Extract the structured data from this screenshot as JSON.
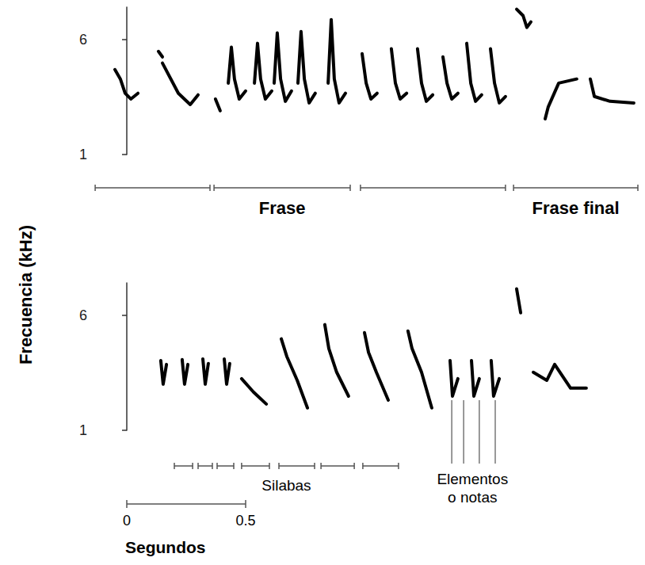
{
  "y_label": "Frecuencia (kHz)",
  "color": "#000000",
  "chart_data": [
    {
      "type": "spectrogram",
      "xlim": [
        -0.14,
        2.16
      ],
      "ylim": [
        1,
        7.4
      ],
      "yticks": [
        1,
        6
      ],
      "notes": [
        [
          [
            -0.05,
            4.69
          ],
          [
            -0.027,
            4.28
          ],
          [
            -0.007,
            3.66
          ],
          [
            0.017,
            3.41
          ],
          [
            0.047,
            3.66
          ]
        ],
        [
          [
            0.133,
            5.48
          ],
          [
            0.15,
            5.24
          ]
        ],
        [
          [
            0.15,
            4.97
          ],
          [
            0.217,
            3.66
          ],
          [
            0.267,
            3.17
          ],
          [
            0.3,
            3.59
          ]
        ],
        [
          [
            0.373,
            3.41
          ],
          [
            0.393,
            2.9
          ]
        ],
        [
          [
            0.427,
            4.1
          ],
          [
            0.44,
            5.66
          ],
          [
            0.453,
            4.28
          ],
          [
            0.473,
            3.41
          ],
          [
            0.5,
            3.76
          ]
        ],
        [
          [
            0.537,
            4.1
          ],
          [
            0.55,
            5.83
          ],
          [
            0.563,
            4.28
          ],
          [
            0.583,
            3.41
          ],
          [
            0.61,
            3.76
          ]
        ],
        [
          [
            0.62,
            4.1
          ],
          [
            0.633,
            6.28
          ],
          [
            0.647,
            4.28
          ],
          [
            0.667,
            3.31
          ],
          [
            0.693,
            3.76
          ]
        ],
        [
          [
            0.72,
            4.1
          ],
          [
            0.733,
            6.34
          ],
          [
            0.747,
            4.28
          ],
          [
            0.767,
            3.24
          ],
          [
            0.793,
            3.66
          ]
        ],
        [
          [
            0.847,
            4.1
          ],
          [
            0.86,
            6.86
          ],
          [
            0.873,
            4.28
          ],
          [
            0.893,
            3.24
          ],
          [
            0.92,
            3.66
          ]
        ],
        [
          [
            0.99,
            5.38
          ],
          [
            1.007,
            4.1
          ],
          [
            1.027,
            3.41
          ],
          [
            1.053,
            3.66
          ]
        ],
        [
          [
            1.113,
            5.59
          ],
          [
            1.13,
            4.1
          ],
          [
            1.15,
            3.41
          ],
          [
            1.177,
            3.66
          ]
        ],
        [
          [
            1.223,
            5.59
          ],
          [
            1.24,
            4.1
          ],
          [
            1.26,
            3.31
          ],
          [
            1.287,
            3.59
          ]
        ],
        [
          [
            1.33,
            5.24
          ],
          [
            1.347,
            4.1
          ],
          [
            1.367,
            3.41
          ],
          [
            1.393,
            3.66
          ]
        ],
        [
          [
            1.43,
            5.83
          ],
          [
            1.447,
            4.1
          ],
          [
            1.467,
            3.31
          ],
          [
            1.493,
            3.59
          ]
        ],
        [
          [
            1.53,
            5.59
          ],
          [
            1.547,
            4.1
          ],
          [
            1.567,
            3.24
          ],
          [
            1.593,
            3.52
          ]
        ],
        [
          [
            1.64,
            7.31
          ],
          [
            1.667,
            7.03
          ],
          [
            1.683,
            6.52
          ],
          [
            1.7,
            6.76
          ]
        ],
        [
          [
            1.76,
            2.55
          ],
          [
            1.773,
            3.07
          ],
          [
            1.817,
            4.1
          ],
          [
            1.893,
            4.28
          ]
        ],
        [
          [
            1.95,
            4.28
          ],
          [
            1.967,
            3.52
          ],
          [
            2.033,
            3.31
          ],
          [
            2.133,
            3.24
          ]
        ]
      ],
      "brackets": [
        {
          "span": [
            -0.133,
            0.35
          ]
        },
        {
          "span": [
            0.367,
            0.94
          ],
          "label": "Frase"
        },
        {
          "span": [
            0.983,
            1.593
          ]
        },
        {
          "span": [
            1.627,
            2.15
          ],
          "label": "Frase final"
        }
      ]
    },
    {
      "type": "spectrogram",
      "xlim": [
        -0.14,
        2.16
      ],
      "ylim": [
        1,
        7.4
      ],
      "yticks": [
        1,
        6
      ],
      "notes": [
        [
          [
            0.143,
            4.03
          ],
          [
            0.153,
            3.0
          ],
          [
            0.167,
            3.86
          ]
        ],
        [
          [
            0.233,
            4.07
          ],
          [
            0.243,
            3.0
          ],
          [
            0.257,
            3.86
          ]
        ],
        [
          [
            0.32,
            4.1
          ],
          [
            0.33,
            3.0
          ],
          [
            0.343,
            3.9
          ]
        ],
        [
          [
            0.41,
            4.1
          ],
          [
            0.42,
            3.0
          ],
          [
            0.433,
            3.9
          ]
        ],
        [
          [
            0.483,
            3.24
          ],
          [
            0.533,
            2.66
          ],
          [
            0.587,
            2.14
          ]
        ],
        [
          [
            0.65,
            4.97
          ],
          [
            0.673,
            4.21
          ],
          [
            0.717,
            3.17
          ],
          [
            0.76,
            1.97
          ]
        ],
        [
          [
            0.833,
            5.59
          ],
          [
            0.85,
            4.55
          ],
          [
            0.883,
            3.52
          ],
          [
            0.933,
            2.48
          ]
        ],
        [
          [
            1.0,
            5.24
          ],
          [
            1.017,
            4.38
          ],
          [
            1.05,
            3.52
          ],
          [
            1.1,
            2.31
          ]
        ],
        [
          [
            1.183,
            5.31
          ],
          [
            1.2,
            4.55
          ],
          [
            1.24,
            3.52
          ],
          [
            1.283,
            1.97
          ]
        ],
        [
          [
            1.36,
            4.03
          ],
          [
            1.37,
            2.48
          ],
          [
            1.393,
            3.24
          ]
        ],
        [
          [
            1.45,
            4.03
          ],
          [
            1.46,
            2.48
          ],
          [
            1.483,
            3.24
          ]
        ],
        [
          [
            1.533,
            4.03
          ],
          [
            1.543,
            2.48
          ],
          [
            1.567,
            3.24
          ]
        ],
        [
          [
            1.64,
            7.14
          ],
          [
            1.657,
            6.1
          ]
        ],
        [
          [
            1.71,
            3.52
          ],
          [
            1.767,
            3.17
          ],
          [
            1.8,
            3.86
          ],
          [
            1.867,
            2.83
          ],
          [
            1.933,
            2.83
          ]
        ]
      ],
      "brackets": [
        {
          "span": [
            0.2,
            0.277
          ]
        },
        {
          "span": [
            0.3,
            0.36
          ]
        },
        {
          "span": [
            0.38,
            0.45
          ]
        },
        {
          "span": [
            0.483,
            0.6
          ]
        },
        {
          "span": [
            0.64,
            0.79
          ]
        },
        {
          "span": [
            0.817,
            0.957
          ]
        },
        {
          "span": [
            0.993,
            1.143
          ]
        }
      ],
      "brackets_label": "Silabas",
      "elements": {
        "label": "Elementos o notas",
        "x": [
          1.367,
          1.417,
          1.483,
          1.55
        ]
      }
    }
  ],
  "scale_bar": {
    "ticks": [
      0,
      0.5
    ],
    "label": "Segundos"
  }
}
